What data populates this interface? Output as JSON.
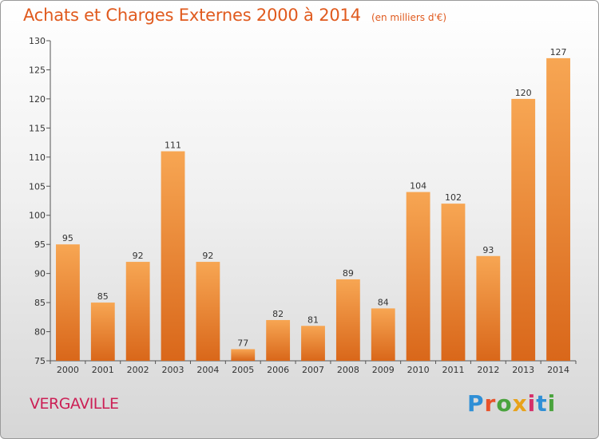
{
  "header": {
    "title": "Achats et Charges Externes 2000 à 2014",
    "unit": "(en milliers d'€)"
  },
  "footer": {
    "commune": "VERGAVILLE",
    "logo": "Proxiti"
  },
  "colors": {
    "bar_light": "#f7a653",
    "bar_dark": "#d9671a",
    "title": "#e05a1e",
    "commune": "#cc1f55",
    "logo_letters": [
      "#2f8fd6",
      "#e8532a",
      "#4aa33d",
      "#e8a21a",
      "#d6306a",
      "#2f8fd6",
      "#4aa33d"
    ]
  },
  "chart_data": {
    "type": "bar",
    "title": "Achats et Charges Externes 2000 à 2014",
    "subtitle": "(en milliers d'€)",
    "xlabel": "",
    "ylabel": "",
    "categories": [
      "2000",
      "2001",
      "2002",
      "2003",
      "2004",
      "2005",
      "2006",
      "2007",
      "2008",
      "2009",
      "2010",
      "2011",
      "2012",
      "2013",
      "2014"
    ],
    "values": [
      95,
      85,
      92,
      111,
      92,
      77,
      82,
      81,
      89,
      84,
      104,
      102,
      93,
      120,
      127
    ],
    "ylim": [
      75,
      130
    ],
    "yticks": [
      75,
      80,
      85,
      90,
      95,
      100,
      105,
      110,
      115,
      120,
      125,
      130
    ],
    "grid": false,
    "legend": "none"
  }
}
